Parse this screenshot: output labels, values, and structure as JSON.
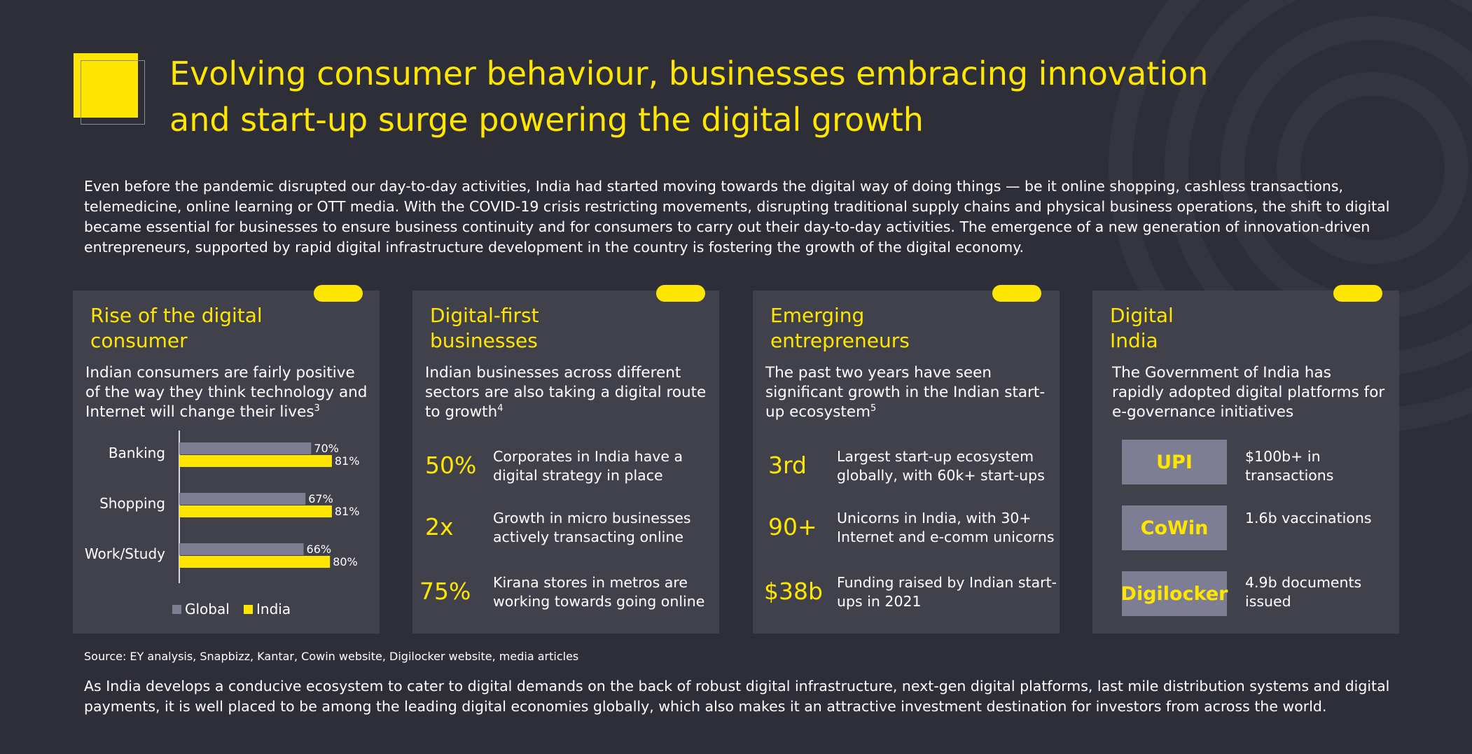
{
  "title": {
    "line1": "Evolving consumer behaviour, businesses embracing innovation",
    "line2": "and start-up surge powering the digital growth"
  },
  "intro": "Even before the pandemic disrupted our day-to-day activities, India had started moving towards the digital way of doing things — be it online shopping, cashless transactions, telemedicine, online learning or OTT media. With the COVID-19 crisis restricting movements, disrupting traditional supply chains and physical business operations, the shift to digital became essential for businesses to ensure business continuity and for consumers to carry out their day-to-day activities. The emergence of a new generation of innovation-driven entrepreneurs, supported by rapid digital infrastructure development in the country is fostering the growth of the digital economy.",
  "cards": [
    {
      "title_line1": "Rise of the digital",
      "title_line2": "consumer",
      "subtitle": "Indian consumers are fairly positive of the way they think technology and Internet will change their lives",
      "footnote": "3"
    },
    {
      "title_line1": "Digital-first",
      "title_line2": "businesses",
      "subtitle": "Indian businesses across different sectors are also taking a digital route to growth",
      "footnote": "4",
      "stats": [
        {
          "value": "50%",
          "desc": "Corporates in India have a digital strategy in place"
        },
        {
          "value": "2x",
          "desc": "Growth in micro businesses actively transacting online"
        },
        {
          "value": "75%",
          "desc": "Kirana stores in metros are working towards going online"
        }
      ]
    },
    {
      "title_line1": "Emerging",
      "title_line2": "entrepreneurs",
      "subtitle": "The past two years have seen significant growth in the Indian start-up ecosystem",
      "footnote": "5",
      "stats": [
        {
          "value": "3rd",
          "desc": "Largest start-up ecosystem globally, with 60k+ start-ups"
        },
        {
          "value": "90+",
          "desc": "Unicorns in India, with 30+ Internet and e-comm unicorns"
        },
        {
          "value": "$38b",
          "desc": "Funding raised by Indian start-ups in 2021"
        }
      ]
    },
    {
      "title_line1": "Digital",
      "title_line2": "India",
      "subtitle": "The Government of India has rapidly adopted digital platforms for e-governance initiatives",
      "platforms": [
        {
          "name": "UPI",
          "desc": "$100b+ in transactions"
        },
        {
          "name": "CoWin",
          "desc": "1.6b vaccinations"
        },
        {
          "name": "Digilocker",
          "desc": "4.9b documents issued"
        }
      ]
    }
  ],
  "chart_data": {
    "type": "bar",
    "orientation": "horizontal",
    "categories": [
      "Banking",
      "Shopping",
      "Work/Study"
    ],
    "series": [
      {
        "name": "Global",
        "values": [
          70,
          67,
          66
        ],
        "color": "#7d7d94"
      },
      {
        "name": "India",
        "values": [
          81,
          81,
          80
        ],
        "color": "#ffe600"
      }
    ],
    "value_suffix": "%",
    "xlim": [
      0,
      100
    ],
    "legend": "bottom"
  },
  "source": "Source: EY analysis, Snapbizz, Kantar, Cowin website, Digilocker website, media articles",
  "closing": "As India develops a conducive ecosystem to cater to digital demands on the back of robust digital infrastructure, next-gen digital platforms, last mile distribution systems and digital payments, it is well placed to be among the leading digital economies globally, which also makes it an attractive investment destination for investors from across the world.",
  "colors": {
    "accent": "#ffe600",
    "background": "#2e2e38",
    "card": "#41414c",
    "muted": "#7d7d94"
  }
}
